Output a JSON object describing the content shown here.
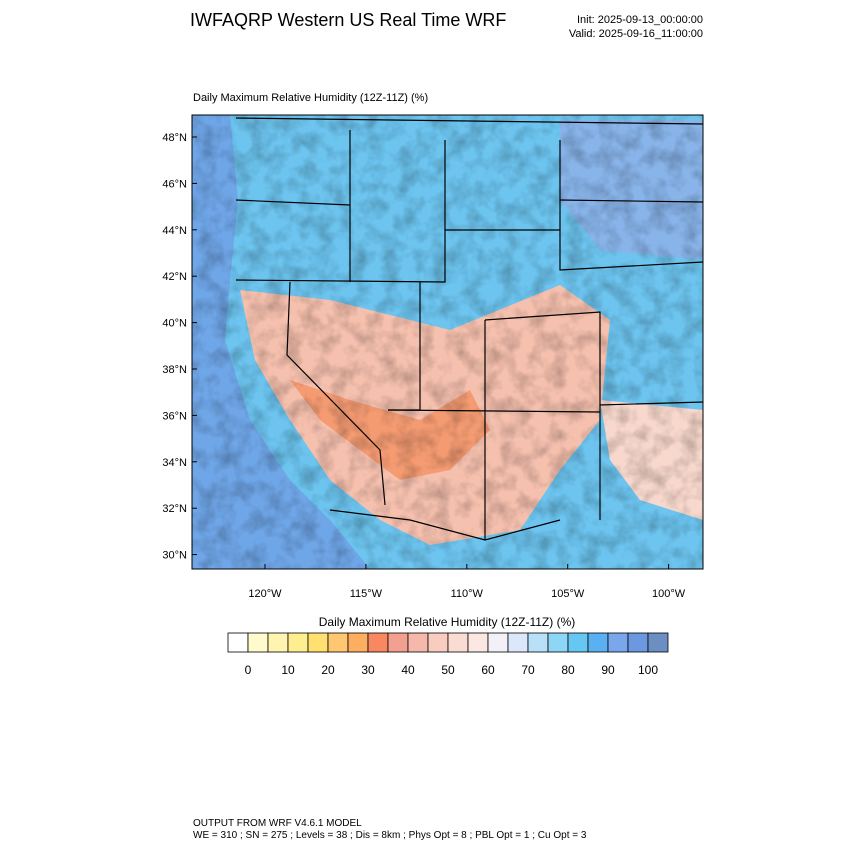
{
  "header": {
    "title": "IWFAQRP Western US Real Time WRF",
    "init": "Init: 2025-09-13_00:00:00",
    "valid": "Valid: 2025-09-16_11:00:00"
  },
  "map": {
    "title": "Daily Maximum Relative Humidity (12Z-11Z)   (%)",
    "lat_labels": [
      "48°N",
      "46°N",
      "44°N",
      "42°N",
      "40°N",
      "38°N",
      "36°N",
      "34°N",
      "32°N",
      "30°N"
    ],
    "lon_labels": [
      "120°W",
      "115°W",
      "110°W",
      "105°W",
      "100°W"
    ]
  },
  "colorbar": {
    "title": "Daily Maximum Relative Humidity (12Z-11Z)  (%)",
    "colors": [
      "#ffffff",
      "#fffbcc",
      "#fff5b0",
      "#ffee90",
      "#ffe070",
      "#ffc870",
      "#fdae61",
      "#f88860",
      "#f4a090",
      "#f6b8aa",
      "#f8cdc0",
      "#fadcd2",
      "#fbe8e2",
      "#f4f0f8",
      "#dbe8fb",
      "#b8e0f8",
      "#8ed6f5",
      "#66c8f2",
      "#5ab0f0",
      "#7aa6ec",
      "#6b98e0",
      "#6a8fc0"
    ],
    "labels": [
      0,
      10,
      20,
      30,
      40,
      50,
      60,
      70,
      80,
      90,
      100
    ]
  },
  "footer": {
    "line1": "OUTPUT FROM WRF V4.6.1 MODEL",
    "line2": "WE = 310 ; SN = 275 ; Levels = 38 ; Dis = 8km ; Phys Opt = 8 ; PBL Opt = 1 ; Cu Opt = 3"
  }
}
